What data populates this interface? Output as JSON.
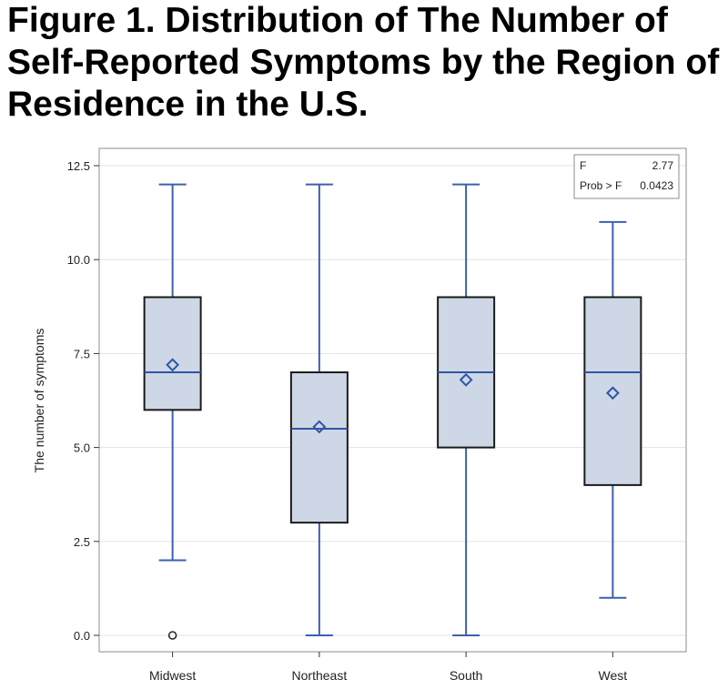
{
  "figure": {
    "title_line1": "Figure 1. Distribution of The Number of",
    "title_line2": "Self-Reported Symptoms by the Region of",
    "title_line3": "Residence in the U.S."
  },
  "chart_data": {
    "type": "box",
    "ylabel": "The number of symptoms",
    "xlabel": "",
    "ylim": [
      0,
      12.5
    ],
    "yticks": [
      0.0,
      2.5,
      5.0,
      7.5,
      10.0,
      12.5
    ],
    "ytick_labels": [
      "0.0",
      "2.5",
      "5.0",
      "7.5",
      "10.0",
      "12.5"
    ],
    "grid": "horizontal",
    "categories": [
      "Midwest",
      "Northeast",
      "South",
      "West"
    ],
    "boxes": [
      {
        "category": "Midwest",
        "whisker_low": 2,
        "q1": 6,
        "median": 7,
        "q3": 9,
        "whisker_high": 12,
        "mean": 7.2,
        "outliers": [
          0
        ]
      },
      {
        "category": "Northeast",
        "whisker_low": 0,
        "q1": 3,
        "median": 5.5,
        "q3": 7,
        "whisker_high": 12,
        "mean": 5.55,
        "outliers": []
      },
      {
        "category": "South",
        "whisker_low": 0,
        "q1": 5,
        "median": 7,
        "q3": 9,
        "whisker_high": 12,
        "mean": 6.8,
        "outliers": []
      },
      {
        "category": "West",
        "whisker_low": 1,
        "q1": 4,
        "median": 7,
        "q3": 9,
        "whisker_high": 11,
        "mean": 6.45,
        "outliers": []
      }
    ],
    "stats_inset": {
      "location": "top-right",
      "rows": [
        {
          "label": "F",
          "value": "2.77"
        },
        {
          "label": "Prob > F",
          "value": "0.0423"
        }
      ]
    },
    "colors": {
      "box_fill": "#cdd7e6",
      "box_stroke": "#1a1a1a",
      "whisker": "#3d5fb0",
      "median": "#2f55a6",
      "mean_marker": "#2f55a6",
      "grid": "#e3e3e3",
      "frame": "#8c8c8c"
    }
  }
}
